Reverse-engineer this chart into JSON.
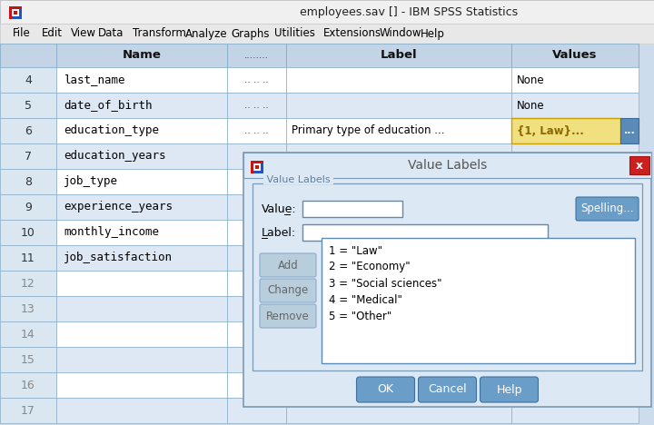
{
  "title_bar": "employees.sav [] - IBM SPSS Statistics",
  "menu_items": [
    "File",
    "Edit",
    "View",
    "Data",
    "Transform",
    "Analyze",
    "Graphs",
    "Utilities",
    "Extensions",
    "Window",
    "Help"
  ],
  "menu_underline_lens": [
    3,
    3,
    3,
    3,
    5,
    4,
    3,
    3,
    3,
    3,
    3
  ],
  "table_rows": [
    {
      "num": "4",
      "name": "last_name",
      "dots": ".. .. ..",
      "label": "",
      "values": "None",
      "highlight": false
    },
    {
      "num": "5",
      "name": "date_of_birth",
      "dots": ".. .. ..",
      "label": "",
      "values": "None",
      "highlight": false
    },
    {
      "num": "6",
      "name": "education_type",
      "dots": ".. .. ..",
      "label": "Primary type of education ...",
      "values": "{1, Law}...",
      "highlight": true
    },
    {
      "num": "7",
      "name": "education_years",
      "dots": "",
      "label": "",
      "values": "",
      "highlight": false
    },
    {
      "num": "8",
      "name": "job_type",
      "dots": "",
      "label": "",
      "values": "",
      "highlight": false
    },
    {
      "num": "9",
      "name": "experience_years",
      "dots": "",
      "label": "",
      "values": "",
      "highlight": false
    },
    {
      "num": "10",
      "name": "monthly_income",
      "dots": "",
      "label": "",
      "values": "",
      "highlight": false
    },
    {
      "num": "11",
      "name": "job_satisfaction",
      "dots": "",
      "label": "",
      "values": "",
      "highlight": false
    },
    {
      "num": "12",
      "name": "",
      "dots": "",
      "label": "",
      "values": "",
      "highlight": false
    },
    {
      "num": "13",
      "name": "",
      "dots": "",
      "label": "",
      "values": "",
      "highlight": false
    },
    {
      "num": "14",
      "name": "",
      "dots": "",
      "label": "",
      "values": "",
      "highlight": false
    },
    {
      "num": "15",
      "name": "",
      "dots": "",
      "label": "",
      "values": "",
      "highlight": false
    },
    {
      "num": "16",
      "name": "",
      "dots": "",
      "label": "",
      "values": "",
      "highlight": false
    },
    {
      "num": "17",
      "name": "",
      "dots": "",
      "label": "",
      "values": "",
      "highlight": false
    }
  ],
  "value_labels": [
    "1 = \"Law\"",
    "2 = \"Economy\"",
    "3 = \"Social sciences\"",
    "4 = \"Medical\"",
    "5 = \"Other\""
  ],
  "buttons_bottom": [
    "OK",
    "Cancel",
    "Help"
  ],
  "buttons_side": [
    "Add",
    "Change",
    "Remove"
  ],
  "bg_main": "#ccdcec",
  "bg_table_white": "#ffffff",
  "bg_table_blue": "#dde8f4",
  "bg_header": "#c2d4e5",
  "bg_num_col": "#dae6f0",
  "bg_highlight_yellow": "#f0e080",
  "bg_dialog": "#dde8f5",
  "bg_dialog_title": "#dde8f5",
  "color_border": "#8aaec8",
  "color_text_dark": "#1a1a1a",
  "color_text_gray": "#555555",
  "color_dialog_title_text": "#555555",
  "color_group_border": "#7a9ab5",
  "color_btn_blue": "#6a9ec8",
  "color_btn_side": "#b8cedd",
  "color_btn_side_text": "#666666",
  "color_highlight_text": "#8b6a00",
  "color_highlight_border": "#c8a000",
  "color_ellipsis_btn": "#5a8ab8",
  "title_bar_bg": "#f0f0f0",
  "menu_bar_bg": "#e8e8e8"
}
